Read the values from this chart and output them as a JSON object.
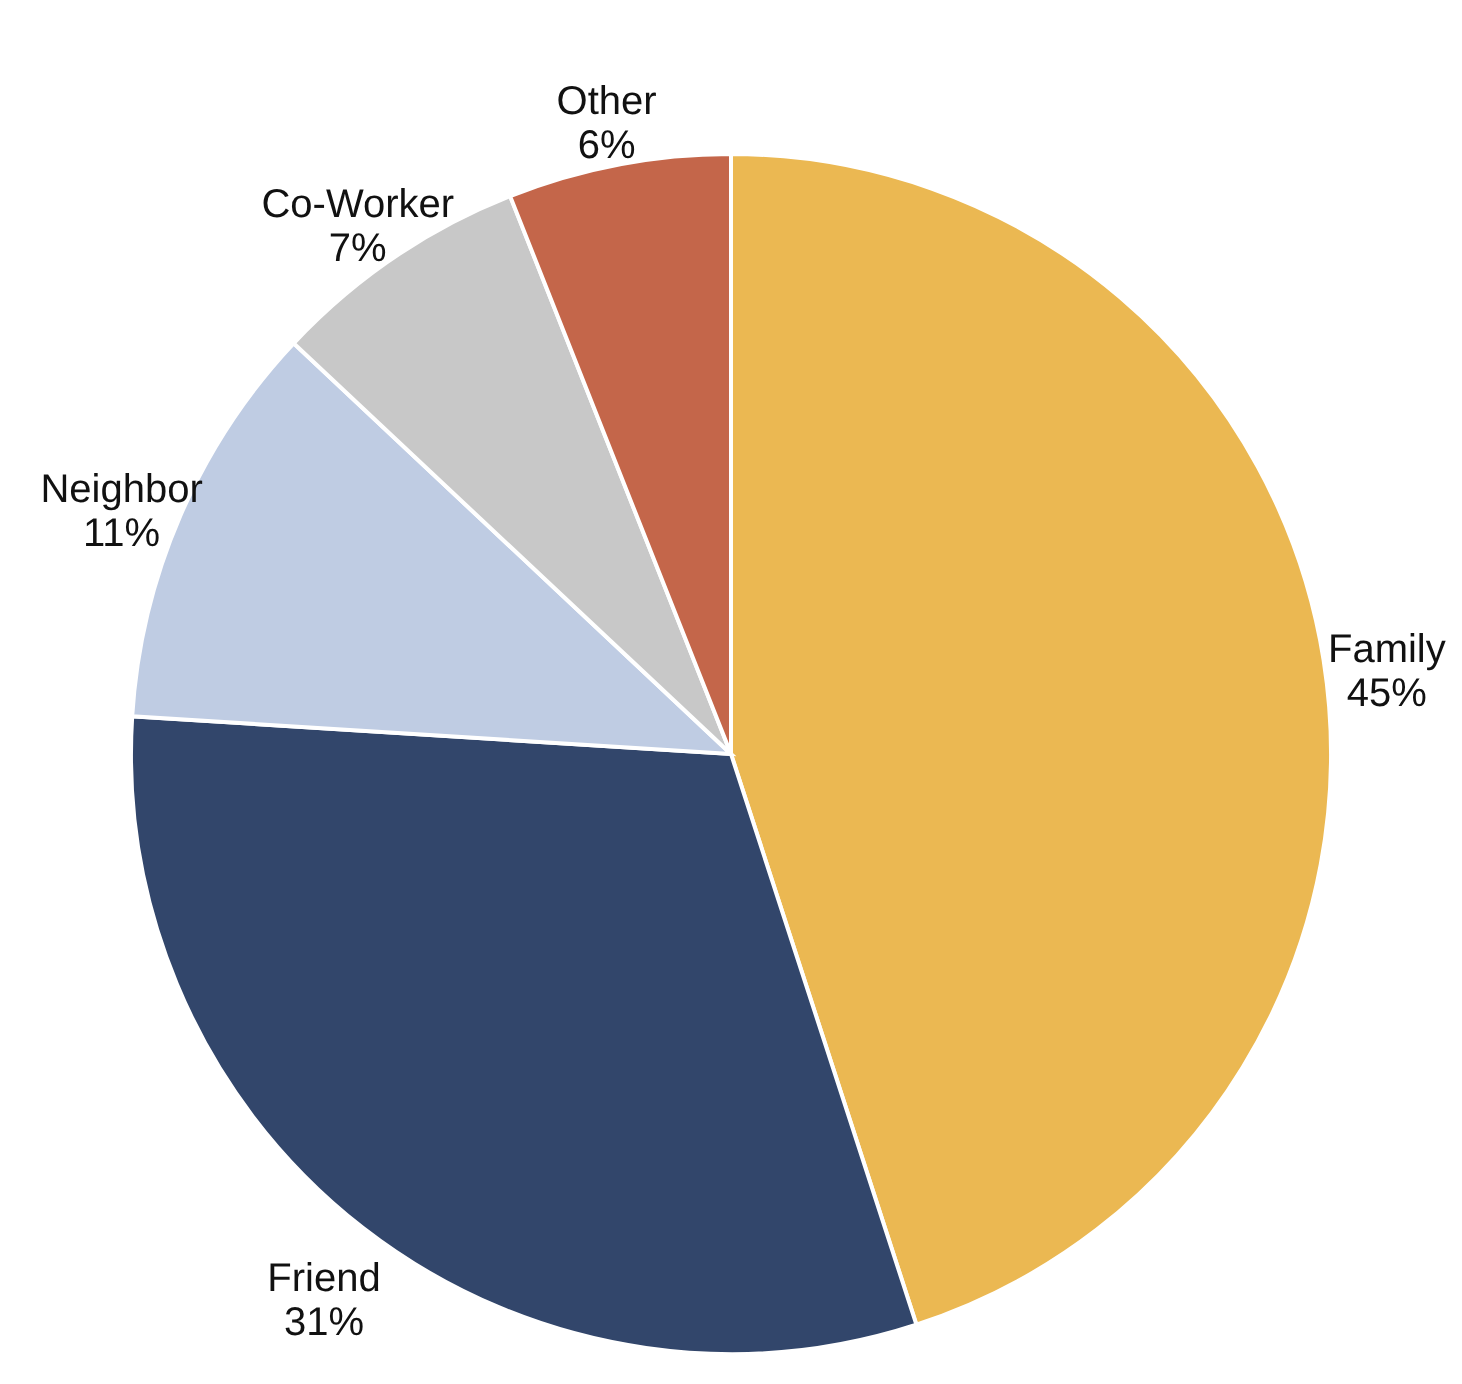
{
  "chart_data": {
    "type": "pie",
    "categories": [
      "Family",
      "Friend",
      "Neighbor",
      "Co-Worker",
      "Other"
    ],
    "values": [
      45,
      31,
      11,
      7,
      6
    ],
    "colors": [
      "#ebb852",
      "#32466b",
      "#bfcce3",
      "#c8c8c8",
      "#c4664a"
    ],
    "value_labels": [
      "45%",
      "31%",
      "11%",
      "7%",
      "6%"
    ]
  }
}
